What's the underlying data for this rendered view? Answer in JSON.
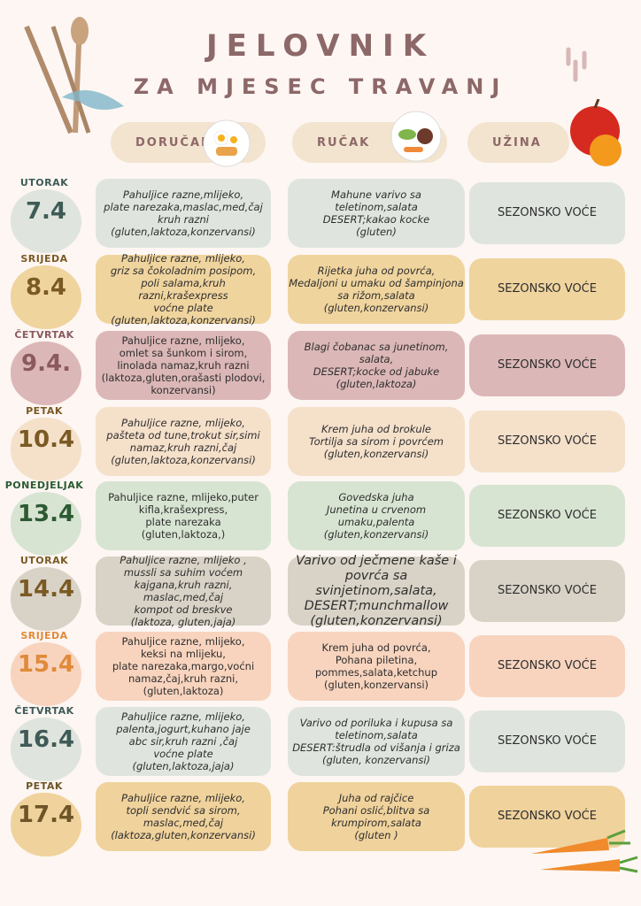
{
  "title": "JELOVNIK",
  "subtitle": "ZA MJESEC TRAVANJ",
  "headers": {
    "breakfast": "DORUČAK",
    "lunch": "RUČAK",
    "snack": "UŽINA"
  },
  "days": [
    {
      "day": "UTORAK",
      "date": "7.4",
      "breakfast": "Pahuljice razne,mlijeko,\nplate narezaka,maslac,med,čaj\nkruh razni\n(gluten,laktoza,konzervansi)",
      "lunch": "Mahune varivo sa\nteletinom,salata\nDESERT;kakao kocke\n(gluten)",
      "snack": "SEZONSKO VOĆE",
      "color": "#dfe5de",
      "label_color": "#3f5b57"
    },
    {
      "day": "SRIJEDA",
      "date": "8.4",
      "breakfast": "Pahuljice razne, mlijeko,\ngriz sa čokoladnim posipom,\npoli salama,kruh razni,krašexpress\nvoćne plate\n(gluten,laktoza,konzervansi)",
      "lunch": "Rijetka juha od povrća,\nMedaljoni u umaku od šampinjona\nsa rižom,salata\n(gluten,konzervansi)",
      "snack": "SEZONSKO VOĆE",
      "color": "#f0d49e",
      "label_color": "#7a5a23"
    },
    {
      "day": "ČETVRTAK",
      "date": "9.4.",
      "breakfast": "Pahuljice razne, mlijeko,\nomlet sa šunkom i sirom,\nlinolada namaz,kruh razni\n(laktoza,gluten,orašasti plodovi,\nkonzervansi)",
      "lunch": "Blagi čobanac sa junetinom,\nsalata,\nDESERT;kocke od jabuke\n(gluten,laktoza)",
      "snack": "SEZONSKO VOĆE",
      "color": "#dcb7b7",
      "label_color": "#8a5a5f"
    },
    {
      "day": "PETAK",
      "date": "10.4",
      "breakfast": "Pahuljice razne, mlijeko,\npašteta od tune,trokut sir,simi\nnamaz,kruh razni,čaj\n(gluten,laktoza,konzervansi)",
      "lunch": "Krem juha od brokule\nTortilja sa sirom i povrćem\n(gluten,konzervansi)",
      "snack": "SEZONSKO VOĆE",
      "color": "#f5e0ca",
      "label_color": "#7a5a23"
    },
    {
      "day": "PONEDJELJAK",
      "date": "13.4",
      "breakfast": "Pahuljice razne, mlijeko,puter\nkifla,krašexpress,\nplate narezaka\n(gluten,laktoza,)",
      "lunch": "Govedska juha\nJunetina u crvenom\numaku,palenta\n(gluten,konzervansi)",
      "snack": "SEZONSKO VOĆE",
      "color": "#d8e4d2",
      "label_color": "#2c5a32"
    },
    {
      "day": "UTORAK",
      "date": "14.4",
      "breakfast": "Pahuljice razne, mlijeko ,\nmussli sa suhim voćem\nkajgana,kruh razni,\nmaslac,med,čaj\nkompot od breskve\n(laktoza, gluten,jaja)",
      "lunch": "Varivo od ječmene kaše i\npovrća sa svinjetinom,salata,\nDESERT;munchmallow\n(gluten,konzervansi)",
      "snack": "SEZONSKO VOĆE",
      "color": "#d9d3c7",
      "label_color": "#7a5a23"
    },
    {
      "day": "SRIJEDA",
      "date": "15.4",
      "breakfast": "Pahuljice razne, mlijeko,\nkeksi na mlijeku,\nplate narezaka,margo,voćni\nnamaz,čaj,kruh razni,\n(gluten,laktoza)",
      "lunch": "Krem juha od povrća,\nPohana piletina,\npommes,salata,ketchup\n(gluten,konzervansi)",
      "snack": "SEZONSKO VOĆE",
      "color": "#f8d4be",
      "label_color": "#e08a3a"
    },
    {
      "day": "ČETVRTAK",
      "date": "16.4",
      "breakfast": "Pahuljice razne, mlijeko,\npalenta,jogurt,kuhano jaje\nabc sir,kruh razni ,čaj\nvoćne plate\n(gluten,laktoza,jaja)",
      "lunch": "Varivo od poriluka i kupusa sa\nteletinom,salata\nDESERT:štrudla od višanja i griza\n(gluten, konzervansi)",
      "snack": "SEZONSKO VOĆE",
      "color": "#dfe5de",
      "label_color": "#3f5b57"
    },
    {
      "day": "PETAK",
      "date": "17.4",
      "breakfast": "Pahuljice razne, mlijeko,\ntopli sendvić sa sirom,\nmaslac,med,čaj\n(laktoza,gluten,konzervansi)",
      "lunch": "Juha od rajčice\nPohani oslić,blitva sa\nkrumpirom,salata\n(gluten )",
      "snack": "SEZONSKO VOĆE",
      "color": "#f0d29c",
      "label_color": "#6e5528"
    }
  ]
}
